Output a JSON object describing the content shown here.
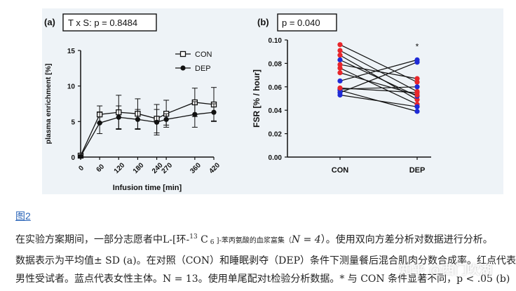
{
  "chart_data": [
    {
      "panel": "(a)",
      "header": "T x S: p = 0.8484",
      "type": "line",
      "xlabel": "Infusion time [min]",
      "ylabel": "plasma enrichment [%]",
      "ylim": [
        0,
        15
      ],
      "yticks": [
        0,
        5,
        10,
        15
      ],
      "x": [
        0,
        60,
        120,
        180,
        240,
        270,
        360,
        420
      ],
      "x_tick_labels": [
        "0",
        "60",
        "120",
        "180",
        "240",
        "270",
        "360",
        "420"
      ],
      "legend_position": "top-right",
      "series": [
        {
          "name": "CON",
          "marker": "open-square",
          "values": [
            0.2,
            6.0,
            6.3,
            6.1,
            5.4,
            6.1,
            7.7,
            7.4
          ],
          "err": [
            0.3,
            1.2,
            2.4,
            2.1,
            2.0,
            1.9,
            2.0,
            2.4
          ]
        },
        {
          "name": "DEP",
          "marker": "filled-circle",
          "values": [
            0.1,
            4.8,
            5.6,
            5.3,
            4.9,
            5.3,
            6.0,
            6.3
          ],
          "err": [
            0.2,
            1.5,
            1.6,
            1.4,
            1.8,
            0.8,
            1.8,
            1.2
          ]
        }
      ]
    },
    {
      "panel": "(b)",
      "header": "p = 0.040",
      "type": "scatter",
      "paired": true,
      "ylabel": "FSR [% / hour]",
      "ylim": [
        0,
        0.1
      ],
      "yticks": [
        0.0,
        0.02,
        0.04,
        0.06,
        0.08,
        0.1
      ],
      "ytick_labels": [
        "0.00",
        "0.02",
        "0.04",
        "0.06",
        "0.08",
        "0.10"
      ],
      "categories": [
        "CON",
        "DEP"
      ],
      "annotation": "*",
      "colors": {
        "red": "#e8262b",
        "blue": "#1f2bd6",
        "line": "#111111"
      },
      "pairs": [
        {
          "con": 0.096,
          "dep": 0.064,
          "color": "red"
        },
        {
          "con": 0.091,
          "dep": 0.056,
          "color": "red"
        },
        {
          "con": 0.087,
          "dep": 0.049,
          "color": "red"
        },
        {
          "con": 0.083,
          "dep": 0.052,
          "color": "blue"
        },
        {
          "con": 0.079,
          "dep": 0.067,
          "color": "red"
        },
        {
          "con": 0.076,
          "dep": 0.045,
          "color": "red"
        },
        {
          "con": 0.072,
          "dep": 0.053,
          "color": "red"
        },
        {
          "con": 0.065,
          "dep": 0.083,
          "color": "blue"
        },
        {
          "con": 0.058,
          "dep": 0.06,
          "color": "blue"
        },
        {
          "con": 0.055,
          "dep": 0.081,
          "color": "blue"
        },
        {
          "con": 0.057,
          "dep": 0.039,
          "color": "blue"
        },
        {
          "con": 0.053,
          "dep": 0.043,
          "color": "blue"
        },
        {
          "con": 0.059,
          "dep": 0.055,
          "color": "red"
        }
      ]
    }
  ],
  "figure_link": "图2",
  "caption": {
    "line1_pre": "在实验方案期间，一部分志愿者中L-[环-",
    "line1_sup": "13",
    "line1_mid": " C",
    "line1_sub": " 6",
    "line1_small": " ]-苯丙氨酸的血浆富集（",
    "line1_n": "N = 4",
    "line1_post": "）。使用双向方差分析对数据进行分析。",
    "line2": "数据表示为平均值± SD (a)。在对照（CON）和睡眠剥夺（DEP）条件下测量餐后混合肌肉分数合成率。红点代表",
    "line3": "男性受试者。蓝点代表女性主体。N = 13。使用单尾配对t检验分析数据。* 与 CON 条件显著不同，p < .05 (b)"
  },
  "watermark": "知乎 @西门吹湖"
}
